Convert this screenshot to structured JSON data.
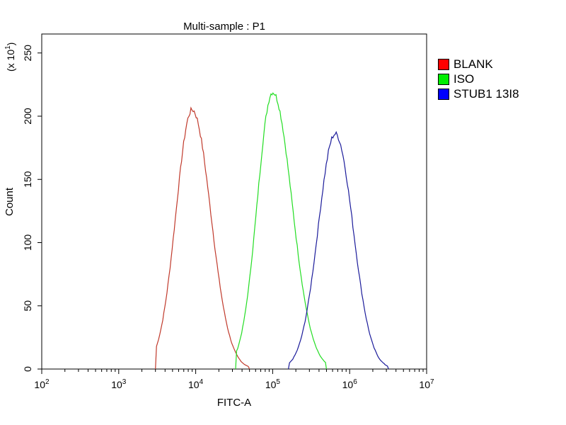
{
  "chart_data": {
    "type": "histogram",
    "title": "Multi-sample : P1",
    "xlabel": "FITC-A",
    "ylabel": "Count",
    "y_multiplier": "(x 10",
    "y_multiplier_exp": "1",
    "y_multiplier_close": ")",
    "x_scale": "log",
    "x_range": [
      100,
      10000000
    ],
    "y_range": [
      0,
      265
    ],
    "x_ticks": [
      {
        "base": "10",
        "exp": "2",
        "value": 100
      },
      {
        "base": "10",
        "exp": "3",
        "value": 1000
      },
      {
        "base": "10",
        "exp": "4",
        "value": 10000
      },
      {
        "base": "10",
        "exp": "5",
        "value": 100000
      },
      {
        "base": "10",
        "exp": "6",
        "value": 1000000
      },
      {
        "base": "10",
        "exp": "7",
        "value": 10000000
      }
    ],
    "y_ticks": [
      "0",
      "50",
      "100",
      "150",
      "200",
      "250"
    ],
    "grid": false,
    "legend_position": "right",
    "series": [
      {
        "name": "BLANK",
        "color": "#c0392b",
        "swatch": "#ff0000",
        "peak_x": 9000,
        "peak_y": 205,
        "sigma_left": 0.21,
        "sigma_right": 0.24,
        "min_x": 3000,
        "max_x": 50000
      },
      {
        "name": "ISO",
        "color": "#22dd22",
        "swatch": "#00ee00",
        "peak_x": 100000,
        "peak_y": 219,
        "sigma_left": 0.2,
        "sigma_right": 0.25,
        "min_x": 33000,
        "max_x": 500000
      },
      {
        "name": "STUB1 13I8",
        "color": "#1a1a9a",
        "swatch": "#0000ff",
        "peak_x": 650000,
        "peak_y": 186,
        "sigma_left": 0.22,
        "sigma_right": 0.23,
        "min_x": 160000,
        "max_x": 3200000
      }
    ]
  }
}
